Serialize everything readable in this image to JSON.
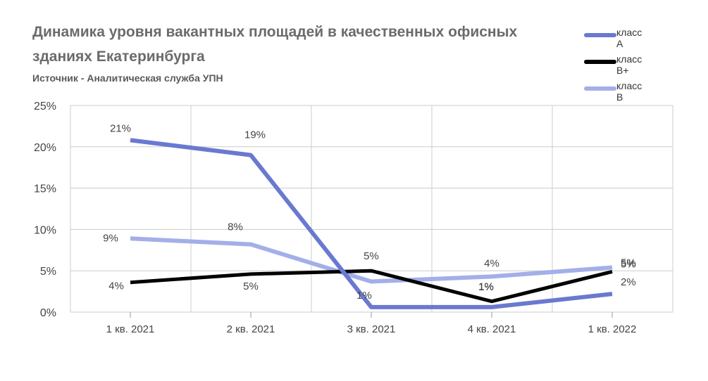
{
  "title": "Динамика уровня вакантных площадей в  качественных офисных зданиях Екатеринбурга",
  "subtitle": "Источник - Аналитическая служба УПН",
  "chart_data": {
    "type": "line",
    "categories": [
      "1 кв. 2021",
      "2 кв. 2021",
      "3 кв. 2021",
      "4 кв. 2021",
      "1 кв. 2022"
    ],
    "y_ticks": [
      "25%",
      "20%",
      "15%",
      "10%",
      "5%",
      "0%"
    ],
    "ylim": [
      0,
      25
    ],
    "grid": true,
    "legend_position": "top-right",
    "series": [
      {
        "name": "класс А",
        "color": "#6a79d0",
        "values": [
          20.8,
          19.0,
          0.6,
          0.6,
          2.2
        ],
        "labels": [
          "21%",
          "19%",
          "1%",
          "1%",
          "2%"
        ]
      },
      {
        "name": "класс В+",
        "color": "#000000",
        "values": [
          3.6,
          4.6,
          5.0,
          1.3,
          4.9
        ],
        "labels": [
          "4%",
          "5%",
          "5%",
          "1%",
          "5%"
        ]
      },
      {
        "name": "класс В",
        "color": "#a3afe8",
        "values": [
          8.9,
          8.2,
          3.7,
          4.3,
          5.4
        ],
        "labels": [
          "9%",
          "8%",
          "",
          "4%",
          "5%"
        ]
      }
    ]
  }
}
